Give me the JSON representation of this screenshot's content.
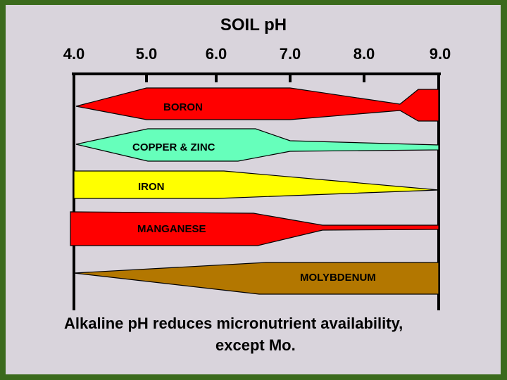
{
  "title": "SOIL pH",
  "ph_ticks": [
    "4.0",
    "5.0",
    "6.0",
    "7.0",
    "8.0",
    "9.0"
  ],
  "bands": [
    {
      "label": "BORON",
      "color": "#ff0000"
    },
    {
      "label": "COPPER & ZINC",
      "color": "#66ffbb"
    },
    {
      "label": "IRON",
      "color": "#ffff00"
    },
    {
      "label": "MANGANESE",
      "color": "#ff0000"
    },
    {
      "label": "MOLYBDENUM",
      "color": "#b37700"
    }
  ],
  "caption": {
    "line1": "Alkaline pH reduces micronutrient availability,",
    "line2": "except Mo."
  }
}
